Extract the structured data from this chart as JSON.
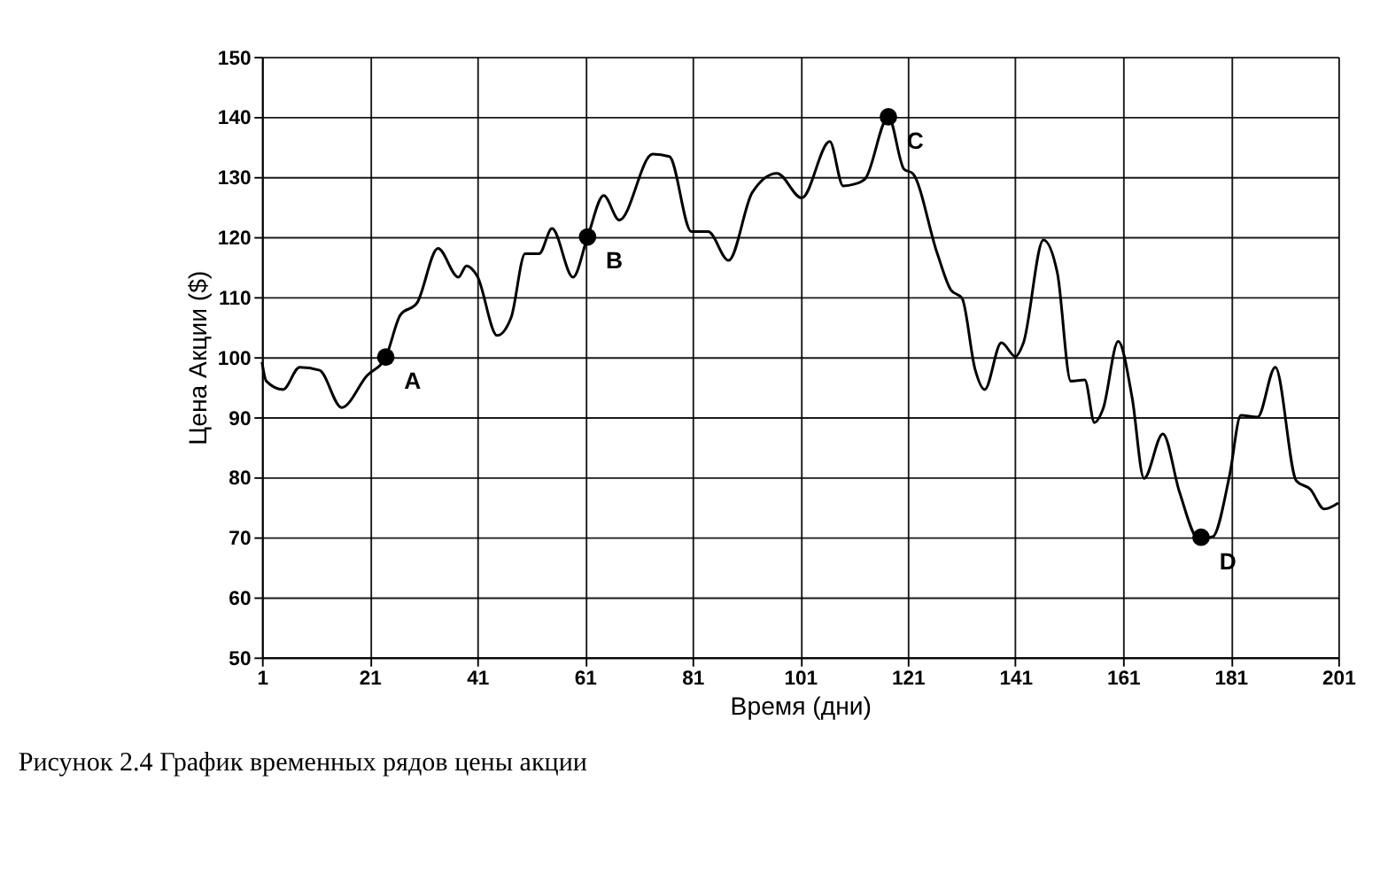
{
  "chart_data": {
    "type": "line",
    "xlabel": "Время (дни)",
    "ylabel": "Цена Акции ($)",
    "annotations": [
      {
        "text": "A",
        "x": 24,
        "y": 100
      },
      {
        "text": "B",
        "x": 61.5,
        "y": 120
      },
      {
        "text": "C",
        "x": 117.4,
        "y": 140
      },
      {
        "text": "D",
        "x": 175.5,
        "y": 70
      },
      "Рисунок 2.4   График временных рядов цены акции"
    ],
    "xlim": [
      1,
      201
    ],
    "xticks": [
      1,
      21,
      41,
      61,
      81,
      101,
      121,
      141,
      161,
      181,
      201
    ],
    "ylim": [
      50,
      150
    ],
    "yticks": [
      50,
      60,
      70,
      80,
      90,
      100,
      110,
      120,
      130,
      140,
      150
    ],
    "grid": true,
    "series": [
      {
        "color": "#000000",
        "marker": "none",
        "x": [
          1,
          1.8,
          4.9,
          8,
          11.7,
          15.8,
          20.5,
          24,
          26.7,
          29.8,
          33.7,
          37.5,
          39,
          41,
          44.7,
          47.3,
          49.9,
          52.5,
          54.9,
          58.8,
          61.5,
          64.5,
          67.4,
          73.6,
          76.7,
          80.8,
          83.9,
          87.7,
          92.1,
          96.7,
          101.3,
          106.5,
          109,
          111.1,
          113.1,
          117.4,
          120.3,
          121.9,
          126.5,
          129,
          131.1,
          133.5,
          135.3,
          138.4,
          141,
          142.5,
          146.2,
          148.8,
          151.3,
          153.9,
          155.7,
          157.3,
          160.1,
          162.7,
          164.9,
          168.4,
          171.5,
          175.1,
          177.7,
          180.8,
          182.9,
          186,
          189.3,
          193.2,
          195.8,
          198.4,
          201
        ],
        "values": [
          99.2,
          96,
          94.6,
          98.3,
          97.8,
          91.6,
          96.9,
          100,
          107,
          109,
          118.1,
          113.3,
          115.2,
          113.5,
          103.6,
          106.6,
          117.2,
          117.2,
          121.4,
          113.3,
          120,
          126.9,
          122.8,
          133.8,
          133.4,
          120.9,
          120.9,
          116.1,
          127.4,
          130.6,
          126.5,
          135.9,
          128.5,
          128.8,
          129.7,
          140,
          131.3,
          130.6,
          117.2,
          111.2,
          109.8,
          98,
          94.6,
          102.4,
          100.1,
          102.4,
          119.5,
          114,
          96,
          96.2,
          89.1,
          91.4,
          102.6,
          93.2,
          79.8,
          87.2,
          77.5,
          69.7,
          70.1,
          80.3,
          90.3,
          90,
          98.3,
          79.4,
          78,
          74.7,
          75.7
        ]
      },
      {
        "type": "scatter",
        "color": "#000000",
        "marker": "circle",
        "x": [
          24,
          61.5,
          117.4,
          175.5
        ],
        "values": [
          100,
          120,
          140,
          70
        ]
      }
    ]
  }
}
